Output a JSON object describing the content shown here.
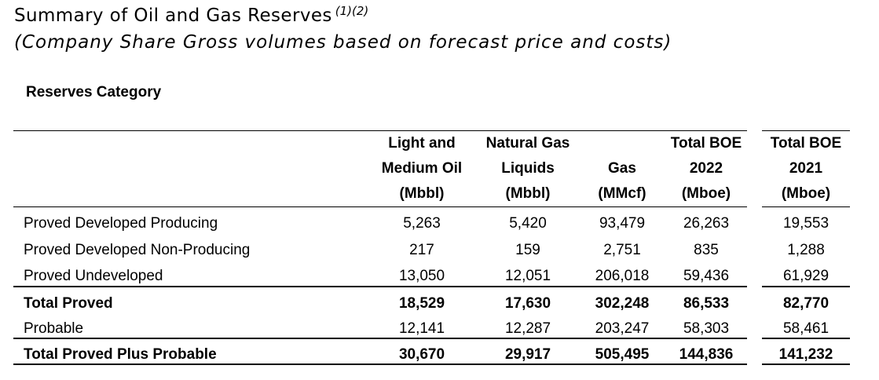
{
  "page": {
    "title": "Summary of Oil and Gas Reserves",
    "title_superscript": "(1)(2)",
    "subtitle": "(Company Share Gross volumes based on forecast price and costs)",
    "section_label": "Reserves Category"
  },
  "table": {
    "columns": [
      {
        "lines": [
          "Light and",
          "Medium Oil",
          "(Mbbl)"
        ]
      },
      {
        "lines": [
          "Natural Gas",
          "Liquids",
          "(Mbbl)"
        ]
      },
      {
        "lines": [
          "",
          "Gas",
          "(MMcf)"
        ]
      },
      {
        "lines": [
          "Total BOE",
          "2022",
          "(Mboe)"
        ]
      },
      {
        "lines": [
          "Total BOE",
          "2021",
          "(Mboe)"
        ]
      }
    ],
    "rows": [
      {
        "label": "Proved Developed Producing",
        "bold": false,
        "values": [
          "5,263",
          "5,420",
          "93,479",
          "26,263",
          "19,553"
        ]
      },
      {
        "label": "Proved Developed Non-Producing",
        "bold": false,
        "values": [
          "217",
          "159",
          "2,751",
          "835",
          "1,288"
        ]
      },
      {
        "label": "Proved Undeveloped",
        "bold": false,
        "values": [
          "13,050",
          "12,051",
          "206,018",
          "59,436",
          "61,929"
        ]
      },
      {
        "label": "Total Proved",
        "bold": true,
        "values": [
          "18,529",
          "17,630",
          "302,248",
          "86,533",
          "82,770"
        ]
      },
      {
        "label": "Probable",
        "bold": false,
        "values": [
          "12,141",
          "12,287",
          "203,247",
          "58,303",
          "58,461"
        ]
      },
      {
        "label": "Total Proved Plus Probable",
        "bold": true,
        "values": [
          "30,670",
          "29,917",
          "505,495",
          "144,836",
          "141,232"
        ]
      }
    ]
  },
  "colors": {
    "text": "#000000",
    "rule": "#000000",
    "background": "#ffffff"
  }
}
